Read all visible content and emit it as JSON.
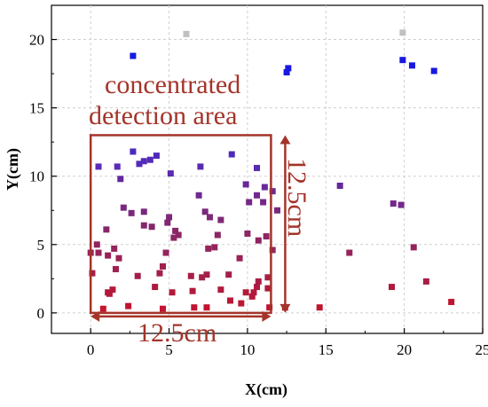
{
  "chart_data": {
    "type": "scatter",
    "title": "",
    "xlabel": "X(cm)",
    "ylabel": "Y(cm)",
    "xlim": [
      -2.5,
      25
    ],
    "ylim": [
      -1.5,
      22.5
    ],
    "xticks": [
      0,
      5,
      10,
      15,
      20,
      25
    ],
    "yticks": [
      0,
      5,
      10,
      15,
      20
    ],
    "grid": true,
    "marker": "square",
    "color_scale": "vertical gradient from red (bottom) to purple to blue (top); two grey points at top",
    "annotations": {
      "area_label_line1": "concentrated",
      "area_label_line2": "detection area",
      "width_label": "12.5cm",
      "height_label": "12.5cm",
      "area_x_range": [
        0,
        11.5
      ],
      "area_y_range": [
        0,
        13
      ]
    },
    "colors": {
      "annotation": "#a4342a",
      "grey_point": "#c0c0c0",
      "blue_point": "#1a1adc"
    },
    "points": [
      {
        "x": 6.1,
        "y": 20.4,
        "color": "#c0c0c0"
      },
      {
        "x": 19.9,
        "y": 20.5,
        "color": "#c0c0c0"
      },
      {
        "x": 2.7,
        "y": 18.8,
        "color": "#1818e0"
      },
      {
        "x": 12.6,
        "y": 17.9,
        "color": "#1818e0"
      },
      {
        "x": 12.5,
        "y": 17.6,
        "color": "#1818e0"
      },
      {
        "x": 19.9,
        "y": 18.5,
        "color": "#1818e0"
      },
      {
        "x": 20.5,
        "y": 18.1,
        "color": "#1818e0"
      },
      {
        "x": 21.9,
        "y": 17.7,
        "color": "#1818e0"
      },
      {
        "x": 0.5,
        "y": 10.7,
        "color": "#5a2ab8"
      },
      {
        "x": 1.7,
        "y": 10.7,
        "color": "#5a2ab8"
      },
      {
        "x": 2.7,
        "y": 11.8,
        "color": "#4a2ac4"
      },
      {
        "x": 3.1,
        "y": 10.9,
        "color": "#542ab8"
      },
      {
        "x": 3.4,
        "y": 11.1,
        "color": "#542ab8"
      },
      {
        "x": 3.8,
        "y": 11.2,
        "color": "#542ab8"
      },
      {
        "x": 4.2,
        "y": 11.5,
        "color": "#502ab8"
      },
      {
        "x": 5.1,
        "y": 10.2,
        "color": "#5a2ab0"
      },
      {
        "x": 7.0,
        "y": 10.7,
        "color": "#5a2ab0"
      },
      {
        "x": 9.0,
        "y": 11.6,
        "color": "#4e2abc"
      },
      {
        "x": 10.6,
        "y": 10.6,
        "color": "#5a2ab0"
      },
      {
        "x": 1.9,
        "y": 9.8,
        "color": "#62289e"
      },
      {
        "x": 9.9,
        "y": 9.4,
        "color": "#68289a"
      },
      {
        "x": 11.1,
        "y": 9.2,
        "color": "#68289a"
      },
      {
        "x": 15.9,
        "y": 9.3,
        "color": "#68289a"
      },
      {
        "x": 6.9,
        "y": 8.6,
        "color": "#702890"
      },
      {
        "x": 10.6,
        "y": 8.6,
        "color": "#702890"
      },
      {
        "x": 11.6,
        "y": 8.9,
        "color": "#702890"
      },
      {
        "x": 10.1,
        "y": 8.1,
        "color": "#742888"
      },
      {
        "x": 11.0,
        "y": 8.1,
        "color": "#742888"
      },
      {
        "x": 19.3,
        "y": 8.0,
        "color": "#742888"
      },
      {
        "x": 19.8,
        "y": 7.9,
        "color": "#742888"
      },
      {
        "x": 2.1,
        "y": 7.7,
        "color": "#782880"
      },
      {
        "x": 2.6,
        "y": 7.3,
        "color": "#7a287c"
      },
      {
        "x": 3.4,
        "y": 7.4,
        "color": "#7a287c"
      },
      {
        "x": 5.0,
        "y": 7.0,
        "color": "#7e2878"
      },
      {
        "x": 7.3,
        "y": 7.4,
        "color": "#7a287c"
      },
      {
        "x": 7.6,
        "y": 7.0,
        "color": "#7e2878"
      },
      {
        "x": 8.3,
        "y": 6.8,
        "color": "#802874"
      },
      {
        "x": 11.9,
        "y": 7.5,
        "color": "#7a287c"
      },
      {
        "x": 3.4,
        "y": 6.4,
        "color": "#84266e"
      },
      {
        "x": 3.9,
        "y": 6.3,
        "color": "#84266e"
      },
      {
        "x": 4.9,
        "y": 6.6,
        "color": "#82266f"
      },
      {
        "x": 5.4,
        "y": 6.0,
        "color": "#88266a"
      },
      {
        "x": 5.3,
        "y": 5.5,
        "color": "#8c2664"
      },
      {
        "x": 5.6,
        "y": 5.7,
        "color": "#8c2664"
      },
      {
        "x": 8.1,
        "y": 5.7,
        "color": "#8c2664"
      },
      {
        "x": 10.0,
        "y": 5.8,
        "color": "#8c2664"
      },
      {
        "x": 11.2,
        "y": 5.6,
        "color": "#8c2664"
      },
      {
        "x": 1.0,
        "y": 6.1,
        "color": "#88266a"
      },
      {
        "x": 0.4,
        "y": 5.0,
        "color": "#90245e"
      },
      {
        "x": 0.5,
        "y": 4.4,
        "color": "#96225a"
      },
      {
        "x": 1.1,
        "y": 4.2,
        "color": "#982258"
      },
      {
        "x": 1.5,
        "y": 4.7,
        "color": "#94245c"
      },
      {
        "x": 4.8,
        "y": 4.4,
        "color": "#96225a"
      },
      {
        "x": 7.5,
        "y": 4.7,
        "color": "#94245c"
      },
      {
        "x": 7.9,
        "y": 4.8,
        "color": "#94245c"
      },
      {
        "x": 10.7,
        "y": 5.3,
        "color": "#90245e"
      },
      {
        "x": 11.6,
        "y": 4.6,
        "color": "#94245c"
      },
      {
        "x": 20.6,
        "y": 4.8,
        "color": "#94245c"
      },
      {
        "x": 16.5,
        "y": 4.4,
        "color": "#98225a"
      },
      {
        "x": 1.8,
        "y": 4.0,
        "color": "#9a2256"
      },
      {
        "x": 0.0,
        "y": 4.4,
        "color": "#98225a"
      },
      {
        "x": 9.5,
        "y": 4.0,
        "color": "#9a2256"
      },
      {
        "x": 1.6,
        "y": 3.2,
        "color": "#a02050"
      },
      {
        "x": 4.6,
        "y": 3.4,
        "color": "#a0204e"
      },
      {
        "x": 0.1,
        "y": 2.9,
        "color": "#a41e4a"
      },
      {
        "x": 3.0,
        "y": 2.7,
        "color": "#a41e4a"
      },
      {
        "x": 4.4,
        "y": 2.9,
        "color": "#a41e4a"
      },
      {
        "x": 6.4,
        "y": 2.7,
        "color": "#a61e48"
      },
      {
        "x": 7.1,
        "y": 2.6,
        "color": "#a61e48"
      },
      {
        "x": 7.4,
        "y": 2.8,
        "color": "#a41e4a"
      },
      {
        "x": 8.8,
        "y": 2.8,
        "color": "#a41e4a"
      },
      {
        "x": 11.3,
        "y": 2.6,
        "color": "#a61e48"
      },
      {
        "x": 10.7,
        "y": 2.3,
        "color": "#aa1c44"
      },
      {
        "x": 21.4,
        "y": 2.3,
        "color": "#aa1c44"
      },
      {
        "x": 1.1,
        "y": 1.5,
        "color": "#b21a3a"
      },
      {
        "x": 1.4,
        "y": 1.7,
        "color": "#b01a3c"
      },
      {
        "x": 4.1,
        "y": 1.9,
        "color": "#ae1a3e"
      },
      {
        "x": 5.2,
        "y": 1.5,
        "color": "#b21a3a"
      },
      {
        "x": 6.5,
        "y": 1.6,
        "color": "#b21a3a"
      },
      {
        "x": 8.3,
        "y": 1.7,
        "color": "#b01a3c"
      },
      {
        "x": 9.9,
        "y": 1.5,
        "color": "#b21a3a"
      },
      {
        "x": 10.4,
        "y": 1.5,
        "color": "#b21a3a"
      },
      {
        "x": 10.6,
        "y": 1.9,
        "color": "#ae1a3e"
      },
      {
        "x": 11.3,
        "y": 1.8,
        "color": "#b01a3c"
      },
      {
        "x": 10.3,
        "y": 1.2,
        "color": "#b4183a"
      },
      {
        "x": 19.2,
        "y": 1.9,
        "color": "#ae1a3e"
      },
      {
        "x": 2.4,
        "y": 0.5,
        "color": "#c01430"
      },
      {
        "x": 4.6,
        "y": 0.3,
        "color": "#c41430"
      },
      {
        "x": 6.6,
        "y": 0.4,
        "color": "#c01430"
      },
      {
        "x": 7.4,
        "y": 0.4,
        "color": "#c01430"
      },
      {
        "x": 8.9,
        "y": 0.9,
        "color": "#ba1634"
      },
      {
        "x": 9.6,
        "y": 0.7,
        "color": "#bc1632"
      },
      {
        "x": 11.4,
        "y": 0.4,
        "color": "#c01430"
      },
      {
        "x": 12.4,
        "y": 0.4,
        "color": "#c21430"
      },
      {
        "x": 14.6,
        "y": 0.4,
        "color": "#c01430"
      },
      {
        "x": 23.0,
        "y": 0.8,
        "color": "#bc1632"
      },
      {
        "x": 0.8,
        "y": 0.3,
        "color": "#c41430"
      },
      {
        "x": 1.2,
        "y": 1.4,
        "color": "#b4183a"
      }
    ]
  }
}
